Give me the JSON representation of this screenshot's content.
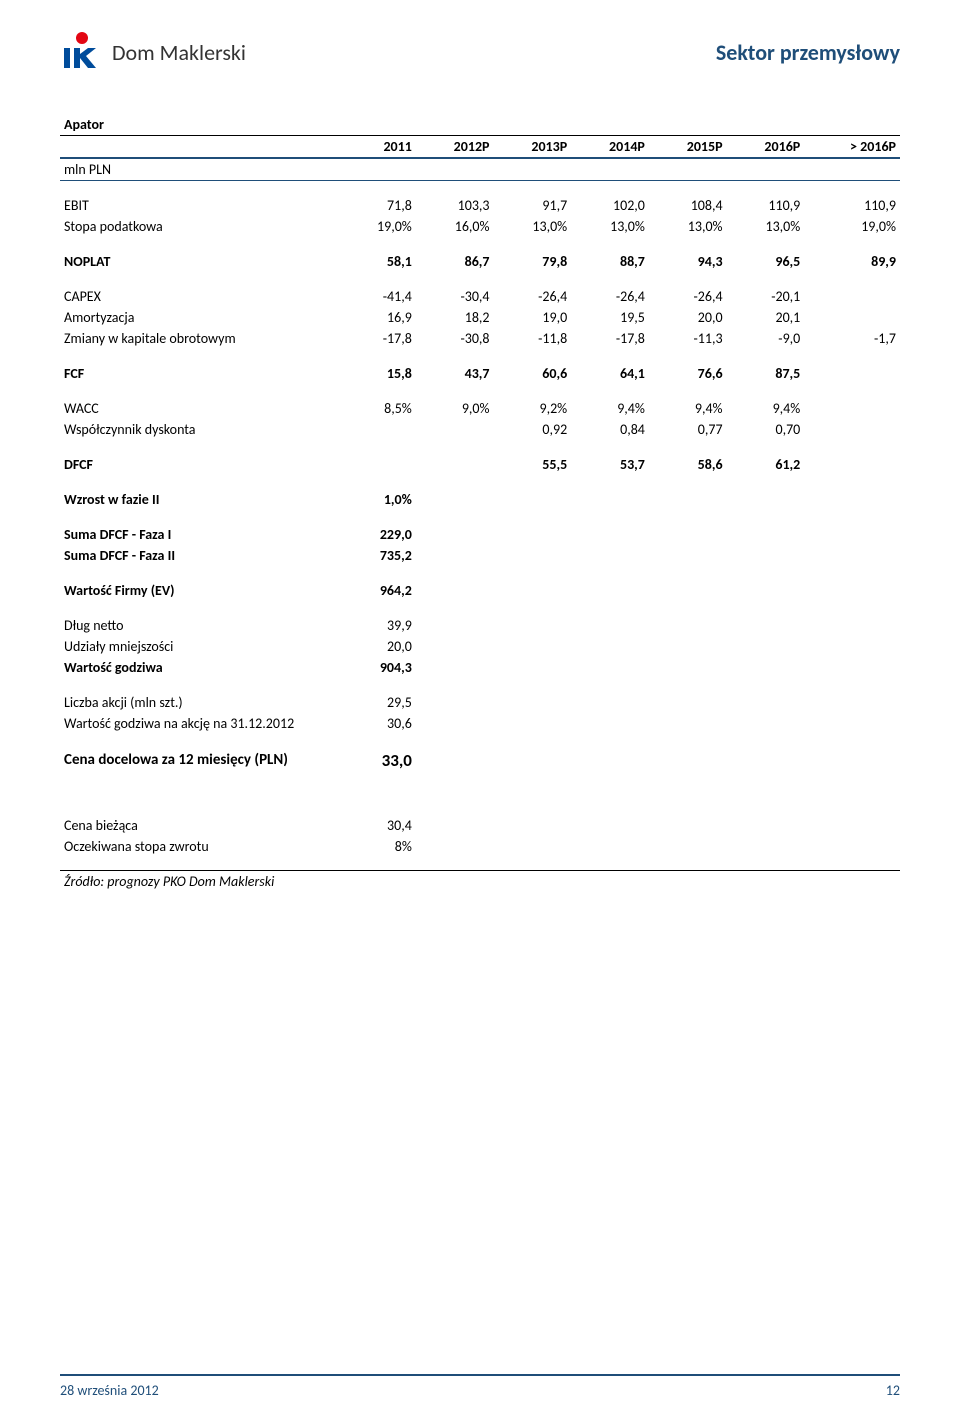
{
  "header": {
    "brand": "Dom Maklerski",
    "sector": "Sektor przemysłowy",
    "sector_color": "#1f4e79",
    "logo_red": "#e30613",
    "logo_blue": "#004c9b"
  },
  "table": {
    "company": "Apator",
    "unit_label": "mln PLN",
    "columns": [
      "2011",
      "2012P",
      "2013P",
      "2014P",
      "2015P",
      "2016P",
      "> 2016P"
    ],
    "sections": [
      {
        "rows": [
          {
            "label": "EBIT",
            "values": [
              "71,8",
              "103,3",
              "91,7",
              "102,0",
              "108,4",
              "110,9",
              "110,9"
            ]
          },
          {
            "label": "Stopa podatkowa",
            "values": [
              "19,0%",
              "16,0%",
              "13,0%",
              "13,0%",
              "13,0%",
              "13,0%",
              "19,0%"
            ]
          }
        ]
      },
      {
        "rows": [
          {
            "label": "NOPLAT",
            "values": [
              "58,1",
              "86,7",
              "79,8",
              "88,7",
              "94,3",
              "96,5",
              "89,9"
            ],
            "bold": true
          }
        ]
      },
      {
        "rows": [
          {
            "label": "CAPEX",
            "values": [
              "-41,4",
              "-30,4",
              "-26,4",
              "-26,4",
              "-26,4",
              "-20,1",
              ""
            ]
          },
          {
            "label": "Amortyzacja",
            "values": [
              "16,9",
              "18,2",
              "19,0",
              "19,5",
              "20,0",
              "20,1",
              ""
            ]
          },
          {
            "label": "Zmiany w kapitale obrotowym",
            "values": [
              "-17,8",
              "-30,8",
              "-11,8",
              "-17,8",
              "-11,3",
              "-9,0",
              "-1,7"
            ]
          }
        ]
      },
      {
        "rows": [
          {
            "label": "FCF",
            "values": [
              "15,8",
              "43,7",
              "60,6",
              "64,1",
              "76,6",
              "87,5",
              ""
            ],
            "bold": true
          }
        ]
      },
      {
        "rows": [
          {
            "label": "WACC",
            "values": [
              "8,5%",
              "9,0%",
              "9,2%",
              "9,4%",
              "9,4%",
              "9,4%",
              ""
            ]
          },
          {
            "label": "Współczynnik dyskonta",
            "values": [
              "",
              "",
              "0,92",
              "0,84",
              "0,77",
              "0,70",
              ""
            ]
          }
        ]
      },
      {
        "rows": [
          {
            "label": "DFCF",
            "values": [
              "",
              "",
              "55,5",
              "53,7",
              "58,6",
              "61,2",
              ""
            ],
            "bold": true
          }
        ]
      },
      {
        "rows": [
          {
            "label": "Wzrost w fazie II",
            "values": [
              "1,0%",
              "",
              "",
              "",
              "",
              "",
              ""
            ],
            "bold": true
          }
        ]
      },
      {
        "rows": [
          {
            "label": "Suma DFCF - Faza I",
            "values": [
              "229,0",
              "",
              "",
              "",
              "",
              "",
              ""
            ],
            "bold": true
          },
          {
            "label": "Suma DFCF - Faza II",
            "values": [
              "735,2",
              "",
              "",
              "",
              "",
              "",
              ""
            ],
            "bold": true
          }
        ]
      },
      {
        "rows": [
          {
            "label": "Wartość Firmy (EV)",
            "values": [
              "964,2",
              "",
              "",
              "",
              "",
              "",
              ""
            ],
            "bold": true
          }
        ]
      },
      {
        "rows": [
          {
            "label": "Dług netto",
            "values": [
              "39,9",
              "",
              "",
              "",
              "",
              "",
              ""
            ]
          },
          {
            "label": "Udziały mniejszości",
            "values": [
              "20,0",
              "",
              "",
              "",
              "",
              "",
              ""
            ]
          },
          {
            "label": "Wartość godziwa",
            "values": [
              "904,3",
              "",
              "",
              "",
              "",
              "",
              ""
            ],
            "bold": true
          }
        ]
      },
      {
        "rows": [
          {
            "label": "Liczba akcji (mln szt.)",
            "values": [
              "29,5",
              "",
              "",
              "",
              "",
              "",
              ""
            ]
          },
          {
            "label": "Wartość godziwa na akcję na 31.12.2012",
            "values": [
              "30,6",
              "",
              "",
              "",
              "",
              "",
              ""
            ]
          }
        ]
      },
      {
        "rows": [
          {
            "label": "Cena docelowa za 12 miesięcy  (PLN)",
            "values": [
              "33,0",
              "",
              "",
              "",
              "",
              "",
              ""
            ],
            "bold": true,
            "big": true
          }
        ]
      },
      {
        "gap": true,
        "rows": []
      },
      {
        "rows": [
          {
            "label": "Cena bieżąca",
            "values": [
              "30,4",
              "",
              "",
              "",
              "",
              "",
              ""
            ]
          },
          {
            "label": "Oczekiwana stopa zwrotu",
            "values": [
              "8%",
              "",
              "",
              "",
              "",
              "",
              ""
            ]
          }
        ]
      }
    ],
    "source_note": "Źródło: prognozy PKO Dom Maklerski"
  },
  "footer": {
    "date": "28 września 2012",
    "page": "12"
  }
}
